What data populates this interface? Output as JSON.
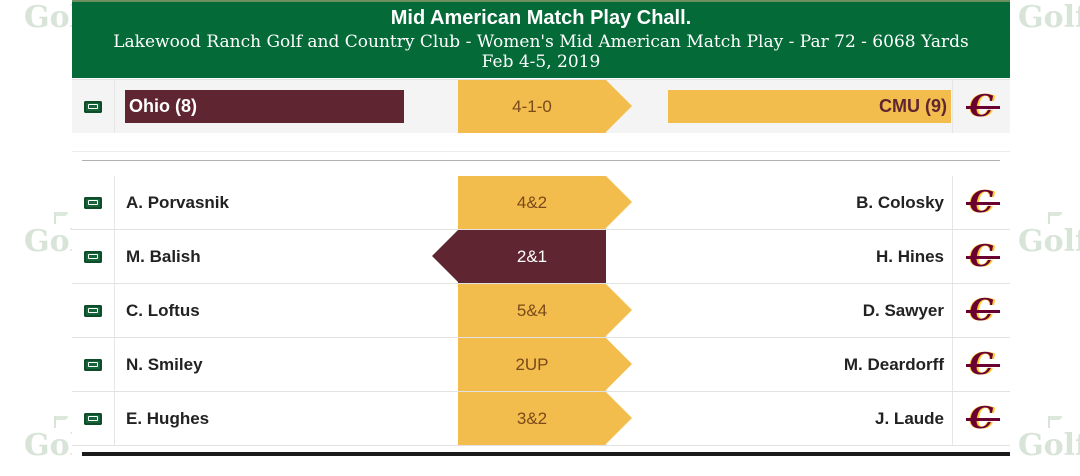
{
  "watermark_text": "Golf",
  "header": {
    "title": "Mid American Match Play Chall.",
    "subtitle": "Lakewood Ranch Golf and Country Club - Women's Mid American Match Play - Par 72 - 6068 Yards",
    "dates": "Feb 4-5, 2019"
  },
  "summary": {
    "left_team": "Ohio (8)",
    "score": "4-1-0",
    "right_team": "CMU (9)",
    "left_logo": "ohio-bobcat-logo",
    "right_logo": "cmu-logo"
  },
  "colors": {
    "header_green": "#046a38",
    "maroon": "#5f2530",
    "gold": "#f2bd4c"
  },
  "matches": [
    {
      "left_player": "A. Porvasnik",
      "result": "4&2",
      "right_player": "B. Colosky",
      "winner": "right"
    },
    {
      "left_player": "M. Balish",
      "result": "2&1",
      "right_player": "H. Hines",
      "winner": "left"
    },
    {
      "left_player": "C. Loftus",
      "result": "5&4",
      "right_player": "D. Sawyer",
      "winner": "right"
    },
    {
      "left_player": "N. Smiley",
      "result": "2UP",
      "right_player": "M. Deardorff",
      "winner": "right"
    },
    {
      "left_player": "E. Hughes",
      "result": "3&2",
      "right_player": "J. Laude",
      "winner": "right"
    }
  ]
}
